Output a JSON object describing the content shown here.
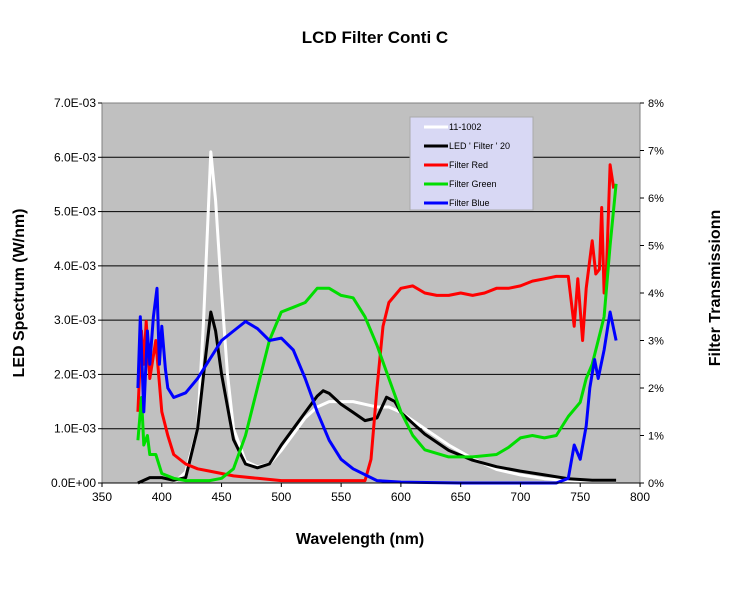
{
  "chart_data": {
    "type": "line",
    "title": "LCD Filter Conti C",
    "xlabel": "Wavelength (nm)",
    "ylabel": "LED Spectrum (W/nm)",
    "y2label": "Filter Transmissionn",
    "xlim": [
      350,
      800
    ],
    "ylim": [
      0,
      0.007
    ],
    "y2lim": [
      0,
      8
    ],
    "xticks": [
      "350",
      "400",
      "450",
      "500",
      "550",
      "600",
      "650",
      "700",
      "750",
      "800"
    ],
    "yticks": [
      "0.0E+00",
      "1.0E-03",
      "2.0E-03",
      "3.0E-03",
      "4.0E-03",
      "5.0E-03",
      "6.0E-03",
      "7.0E-03"
    ],
    "y2ticks": [
      "0%",
      "1%",
      "2%",
      "3%",
      "4%",
      "5%",
      "6%",
      "7%",
      "8%"
    ],
    "grid": "horizontal",
    "legend_position": "top-right",
    "series": [
      {
        "name": "11-1002",
        "axis": "left",
        "unit": "1e-3 W/nm",
        "color": "#ffffff",
        "x": [
          410,
          420,
          430,
          435,
          441,
          445,
          450,
          455,
          460,
          470,
          480,
          490,
          500,
          510,
          520,
          530,
          540,
          550,
          560,
          570,
          580,
          590,
          600,
          620,
          640,
          660,
          680,
          700,
          720,
          750,
          780
        ],
        "y": [
          0,
          0.2,
          1.0,
          3.0,
          6.1,
          5.2,
          3.5,
          2.0,
          1.0,
          0.4,
          0.3,
          0.35,
          0.6,
          0.9,
          1.2,
          1.4,
          1.5,
          1.5,
          1.5,
          1.45,
          1.4,
          1.4,
          1.3,
          1.0,
          0.7,
          0.45,
          0.25,
          0.15,
          0.08,
          0.03,
          0.02
        ]
      },
      {
        "name": "LED ' Filter ' 20",
        "axis": "left",
        "unit": "1e-3 W/nm",
        "color": "#000000",
        "x": [
          380,
          390,
          400,
          410,
          420,
          430,
          436,
          441,
          445,
          450,
          460,
          470,
          480,
          490,
          500,
          510,
          520,
          530,
          535,
          540,
          550,
          560,
          570,
          580,
          588,
          595,
          600,
          610,
          620,
          640,
          660,
          680,
          700,
          720,
          740,
          760,
          780
        ],
        "y": [
          0,
          0.1,
          0.1,
          0.05,
          0.1,
          1.0,
          2.2,
          3.15,
          2.8,
          2.0,
          0.8,
          0.35,
          0.28,
          0.35,
          0.7,
          1.0,
          1.3,
          1.6,
          1.7,
          1.65,
          1.45,
          1.3,
          1.15,
          1.2,
          1.58,
          1.5,
          1.3,
          1.1,
          0.9,
          0.6,
          0.42,
          0.3,
          0.22,
          0.15,
          0.08,
          0.05,
          0.05
        ]
      },
      {
        "name": "Filter Red",
        "axis": "right",
        "unit": "%",
        "color": "#ff0000",
        "x": [
          380,
          383,
          385,
          387,
          390,
          395,
          400,
          405,
          410,
          420,
          430,
          440,
          450,
          460,
          480,
          500,
          550,
          570,
          575,
          580,
          585,
          590,
          600,
          610,
          620,
          630,
          640,
          650,
          660,
          670,
          680,
          690,
          700,
          710,
          720,
          730,
          740,
          745,
          748,
          752,
          755,
          760,
          763,
          766,
          768,
          770,
          772,
          775,
          778
        ],
        "y": [
          1.5,
          3.2,
          2.5,
          3.4,
          2.2,
          3.0,
          1.5,
          1.0,
          0.6,
          0.4,
          0.3,
          0.25,
          0.2,
          0.15,
          0.1,
          0.05,
          0.05,
          0.05,
          0.5,
          2.0,
          3.3,
          3.8,
          4.1,
          4.15,
          4.0,
          3.95,
          3.95,
          4.0,
          3.95,
          4.0,
          4.1,
          4.1,
          4.15,
          4.25,
          4.3,
          4.35,
          4.35,
          3.3,
          4.3,
          3.0,
          4.1,
          5.1,
          4.4,
          4.5,
          5.8,
          4.0,
          4.5,
          6.7,
          6.2
        ]
      },
      {
        "name": "Filter Green",
        "axis": "right",
        "unit": "%",
        "color": "#00dd00",
        "x": [
          380,
          383,
          385,
          388,
          390,
          395,
          400,
          410,
          420,
          440,
          450,
          460,
          470,
          480,
          490,
          500,
          510,
          520,
          530,
          540,
          550,
          560,
          570,
          580,
          590,
          600,
          610,
          620,
          640,
          660,
          680,
          690,
          700,
          710,
          720,
          730,
          740,
          750,
          755,
          760,
          765,
          770,
          775,
          780
        ],
        "y": [
          0.9,
          1.8,
          0.8,
          1.0,
          0.6,
          0.6,
          0.2,
          0.1,
          0.05,
          0.05,
          0.1,
          0.3,
          1.0,
          2.0,
          3.0,
          3.6,
          3.7,
          3.8,
          4.1,
          4.1,
          3.95,
          3.9,
          3.5,
          2.9,
          2.2,
          1.5,
          1.0,
          0.7,
          0.55,
          0.55,
          0.6,
          0.75,
          0.95,
          1.0,
          0.95,
          1.0,
          1.4,
          1.7,
          2.2,
          2.5,
          3.0,
          3.5,
          5.0,
          6.3
        ]
      },
      {
        "name": "Filter Blue",
        "axis": "right",
        "unit": "%",
        "color": "#0000ff",
        "x": [
          380,
          382,
          385,
          388,
          390,
          393,
          396,
          398,
          400,
          403,
          405,
          410,
          420,
          430,
          440,
          450,
          460,
          470,
          480,
          490,
          500,
          510,
          520,
          530,
          540,
          550,
          560,
          580,
          600,
          650,
          700,
          730,
          740,
          745,
          750,
          755,
          758,
          762,
          765,
          770,
          775,
          780
        ],
        "y": [
          2.0,
          3.5,
          1.5,
          3.2,
          2.5,
          3.5,
          4.1,
          2.5,
          3.3,
          2.4,
          2.0,
          1.8,
          1.9,
          2.2,
          2.6,
          3.0,
          3.2,
          3.4,
          3.25,
          3.0,
          3.05,
          2.8,
          2.2,
          1.5,
          0.9,
          0.5,
          0.3,
          0.05,
          0.02,
          0,
          0,
          0,
          0.1,
          0.8,
          0.5,
          1.2,
          2.0,
          2.6,
          2.2,
          2.8,
          3.6,
          3.0
        ]
      }
    ]
  }
}
